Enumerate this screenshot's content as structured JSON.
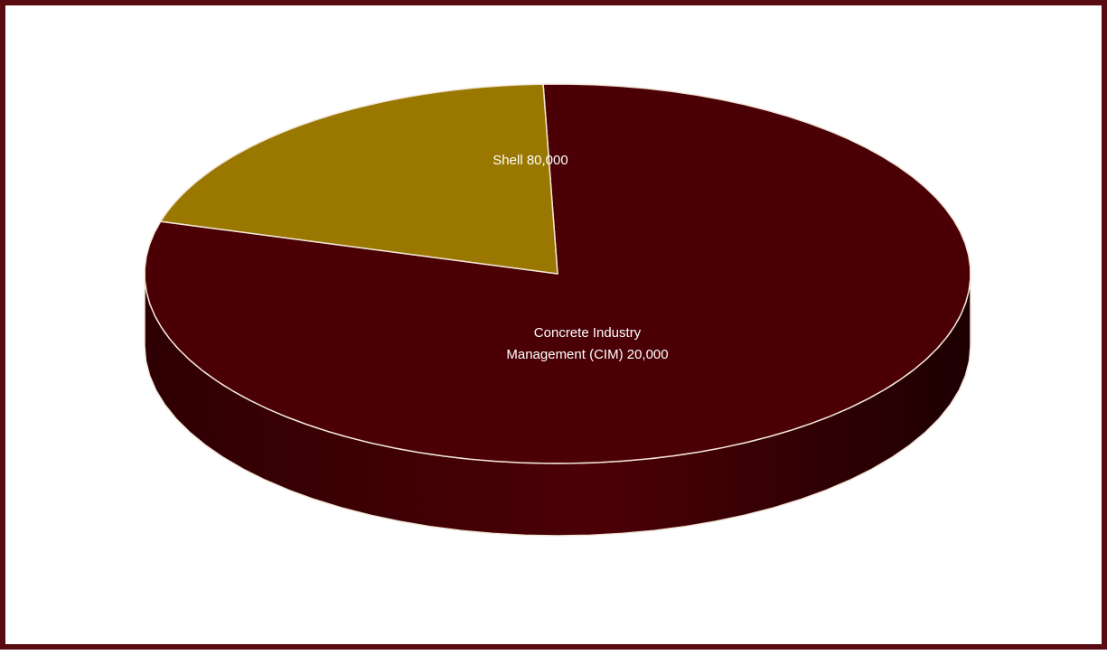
{
  "chart_data": {
    "type": "pie",
    "style": "3d",
    "categories": [
      "Shell",
      "Concrete Industry Management (CIM)"
    ],
    "values": [
      80000,
      20000
    ],
    "data_labels": [
      "Shell  80,000",
      "Concrete Industry\nManagement (CIM)  20,000"
    ],
    "colors": [
      "#4a0004",
      "#9a7800"
    ],
    "frame_color": "#5a0b12",
    "legend": "none",
    "title": ""
  }
}
